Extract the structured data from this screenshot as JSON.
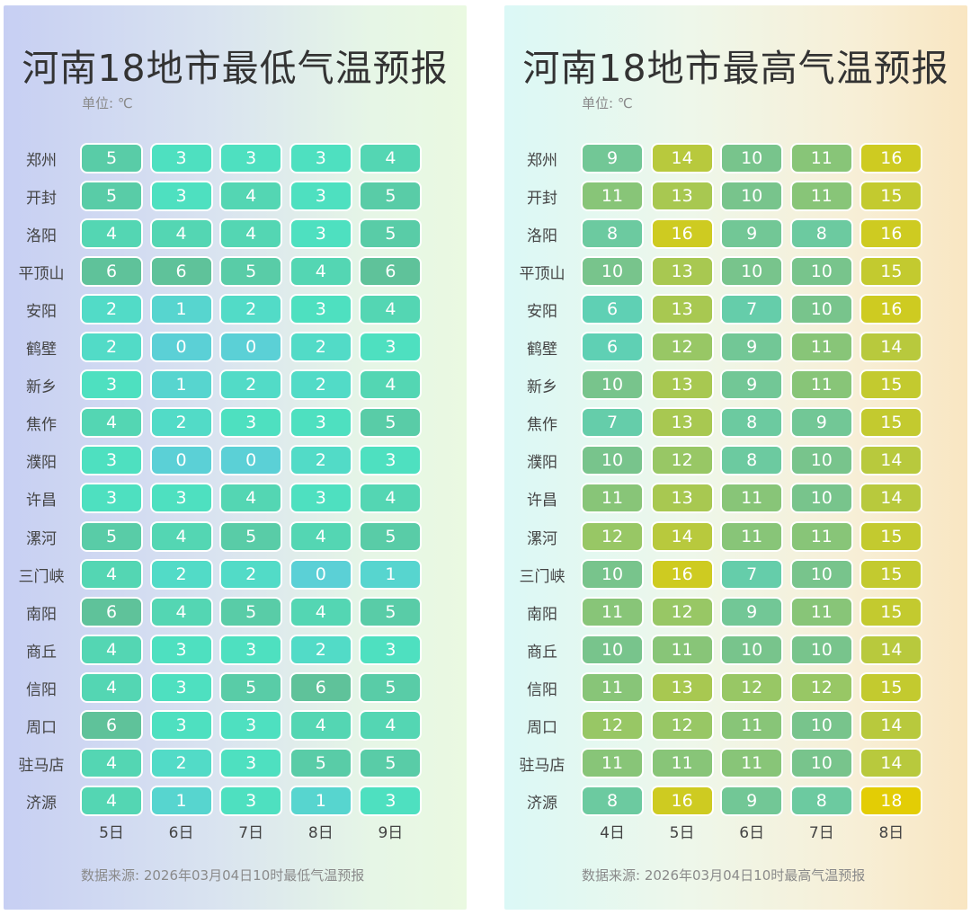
{
  "chart_data": [
    {
      "type": "heatmap",
      "title": "河南18地市最低气温预报",
      "unit_label": "单位: ℃",
      "source": "数据来源: 2026年03月04日10时最低气温预报",
      "days": [
        "5日",
        "6日",
        "7日",
        "8日",
        "9日"
      ],
      "cities": [
        "郑州",
        "开封",
        "洛阳",
        "平顶山",
        "安阳",
        "鹤壁",
        "新乡",
        "焦作",
        "濮阳",
        "许昌",
        "漯河",
        "三门峡",
        "南阳",
        "商丘",
        "信阳",
        "周口",
        "驻马店",
        "济源"
      ],
      "values": [
        [
          5,
          3,
          3,
          3,
          4
        ],
        [
          5,
          3,
          4,
          3,
          5
        ],
        [
          4,
          4,
          4,
          3,
          5
        ],
        [
          6,
          6,
          5,
          4,
          6
        ],
        [
          2,
          1,
          2,
          3,
          4
        ],
        [
          2,
          0,
          0,
          2,
          3
        ],
        [
          3,
          1,
          2,
          2,
          4
        ],
        [
          4,
          2,
          3,
          3,
          5
        ],
        [
          3,
          0,
          0,
          2,
          3
        ],
        [
          3,
          3,
          4,
          3,
          4
        ],
        [
          5,
          4,
          5,
          4,
          5
        ],
        [
          4,
          2,
          2,
          0,
          1
        ],
        [
          6,
          4,
          5,
          4,
          5
        ],
        [
          4,
          3,
          3,
          2,
          3
        ],
        [
          4,
          3,
          5,
          6,
          5
        ],
        [
          6,
          3,
          3,
          4,
          4
        ],
        [
          4,
          2,
          3,
          5,
          5
        ],
        [
          4,
          1,
          3,
          1,
          3
        ]
      ],
      "color_range": [
        0,
        6
      ],
      "colors": [
        "#5bd0d6",
        "#4ee0c0",
        "#5fc29a"
      ]
    },
    {
      "type": "heatmap",
      "title": "河南18地市最高气温预报",
      "unit_label": "单位: ℃",
      "source": "数据来源: 2026年03月04日10时最高气温预报",
      "days": [
        "4日",
        "5日",
        "6日",
        "7日",
        "8日"
      ],
      "cities": [
        "郑州",
        "开封",
        "洛阳",
        "平顶山",
        "安阳",
        "鹤壁",
        "新乡",
        "焦作",
        "濮阳",
        "许昌",
        "漯河",
        "三门峡",
        "南阳",
        "商丘",
        "信阳",
        "周口",
        "驻马店",
        "济源"
      ],
      "values": [
        [
          9,
          14,
          10,
          11,
          16
        ],
        [
          11,
          13,
          10,
          11,
          15
        ],
        [
          8,
          16,
          9,
          8,
          16
        ],
        [
          10,
          13,
          10,
          10,
          15
        ],
        [
          6,
          13,
          7,
          10,
          16
        ],
        [
          6,
          12,
          9,
          11,
          14
        ],
        [
          10,
          13,
          9,
          11,
          15
        ],
        [
          7,
          13,
          8,
          9,
          15
        ],
        [
          10,
          12,
          8,
          10,
          14
        ],
        [
          11,
          13,
          11,
          10,
          14
        ],
        [
          12,
          14,
          11,
          11,
          15
        ],
        [
          10,
          16,
          7,
          10,
          15
        ],
        [
          11,
          12,
          9,
          11,
          15
        ],
        [
          10,
          11,
          10,
          10,
          14
        ],
        [
          11,
          13,
          12,
          12,
          15
        ],
        [
          12,
          12,
          11,
          10,
          14
        ],
        [
          11,
          11,
          11,
          10,
          14
        ],
        [
          8,
          16,
          9,
          8,
          18
        ]
      ],
      "color_range": [
        6,
        18
      ],
      "colors": [
        "#5fd0b4",
        "#78c48c",
        "#b8c93d",
        "#e3cd05"
      ]
    }
  ]
}
